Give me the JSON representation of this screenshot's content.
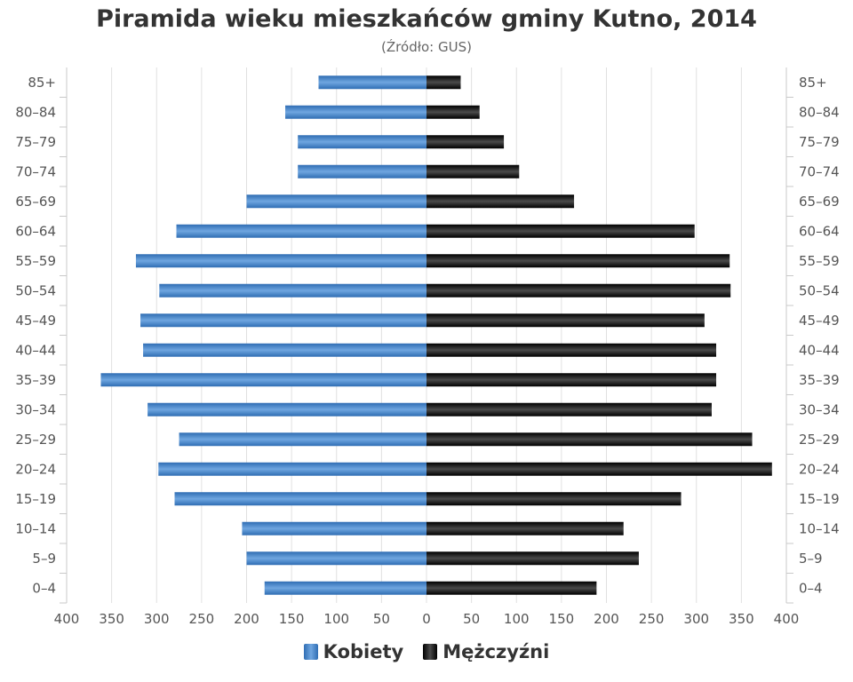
{
  "title": "Piramida wieku mieszkańców gminy Kutno, 2014",
  "subtitle": "(Źródło: GUS)",
  "legend": {
    "female": "Kobiety",
    "male": "Mężczyźni"
  },
  "colors": {
    "female": "#3f7fc6",
    "male": "#111111",
    "grid": "#e0e0e0"
  },
  "chart_data": {
    "type": "bar",
    "orientation": "horizontal-population-pyramid",
    "categories": [
      "0–4",
      "5–9",
      "10–14",
      "15–19",
      "20–24",
      "25–29",
      "30–34",
      "35–39",
      "40–44",
      "45–49",
      "50–54",
      "55–59",
      "60–64",
      "65–69",
      "70–74",
      "75–79",
      "80–84",
      "85+"
    ],
    "series": [
      {
        "name": "Kobiety",
        "side": "left",
        "values": [
          180,
          200,
          205,
          280,
          298,
          275,
          310,
          362,
          315,
          318,
          297,
          323,
          278,
          200,
          143,
          143,
          157,
          120
        ]
      },
      {
        "name": "Mężczyźni",
        "side": "right",
        "values": [
          189,
          236,
          219,
          283,
          384,
          362,
          317,
          322,
          322,
          309,
          338,
          337,
          298,
          164,
          103,
          86,
          59,
          38
        ]
      }
    ],
    "x_ticks": [
      "400",
      "350",
      "300",
      "250",
      "200",
      "150",
      "100",
      "50",
      "0",
      "50",
      "100",
      "150",
      "200",
      "250",
      "300",
      "350",
      "400"
    ],
    "xlim": [
      -400,
      400
    ],
    "grid": true,
    "legend_position": "bottom"
  }
}
